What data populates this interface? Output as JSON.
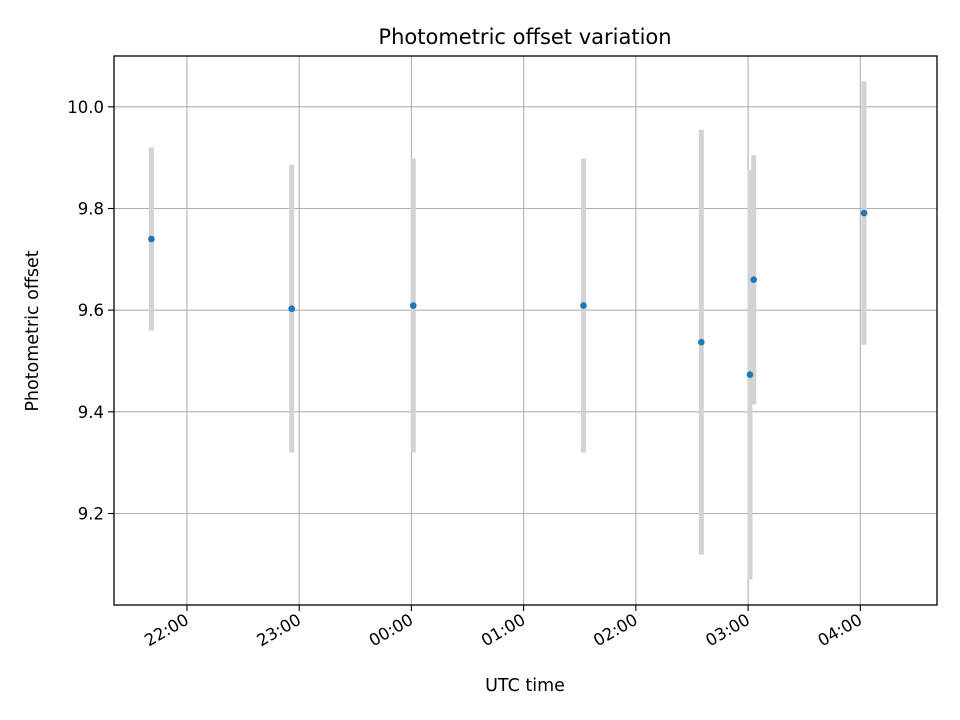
{
  "chart_data": {
    "type": "scatter",
    "title": "Photometric offset variation",
    "xlabel": "UTC time",
    "ylabel": "Photometric offset",
    "x_axis_kind": "time",
    "x_range": [
      "21:21",
      "04:41"
    ],
    "ylim": [
      9.02,
      10.1
    ],
    "x_ticks": [
      {
        "time": "22:00",
        "label": "22:00"
      },
      {
        "time": "23:00",
        "label": "23:00"
      },
      {
        "time": "00:00",
        "label": "00:00"
      },
      {
        "time": "01:00",
        "label": "01:00"
      },
      {
        "time": "02:00",
        "label": "02:00"
      },
      {
        "time": "03:00",
        "label": "03:00"
      },
      {
        "time": "04:00",
        "label": "04:00"
      }
    ],
    "y_ticks": [
      {
        "value": 9.2,
        "label": "9.2"
      },
      {
        "value": 9.4,
        "label": "9.4"
      },
      {
        "value": 9.6,
        "label": "9.6"
      },
      {
        "value": 9.8,
        "label": "9.8"
      },
      {
        "value": 10.0,
        "label": "10.0"
      }
    ],
    "grid": true,
    "marker_color": "#1f77b4",
    "errorbar_color": "#d3d3d3",
    "points": [
      {
        "time": "21:41",
        "y": 9.74,
        "err": 0.18
      },
      {
        "time": "22:56",
        "y": 9.603,
        "err": 0.283
      },
      {
        "time": "00:01",
        "y": 9.609,
        "err": 0.289
      },
      {
        "time": "01:32",
        "y": 9.609,
        "err": 0.289
      },
      {
        "time": "02:35",
        "y": 9.537,
        "err": 0.418
      },
      {
        "time": "03:01",
        "y": 9.473,
        "err": 0.403
      },
      {
        "time": "03:03",
        "y": 9.66,
        "err": 0.245
      },
      {
        "time": "04:02",
        "y": 9.791,
        "err": 0.259
      }
    ]
  }
}
